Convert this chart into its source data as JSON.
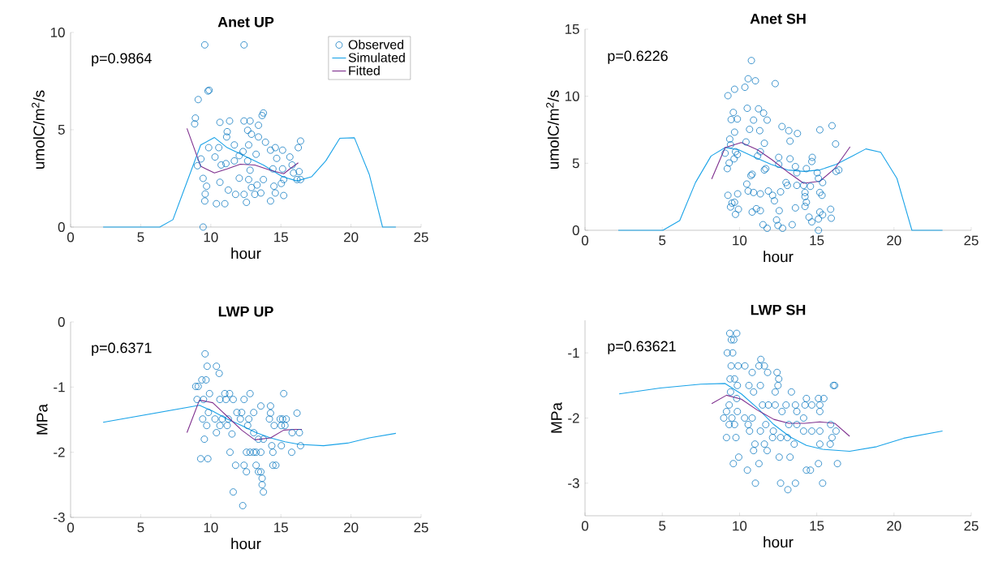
{
  "chart_data": [
    {
      "type": "scatter",
      "title": "Anet UP",
      "xlabel": "hour",
      "ylabel": "umolC/m$^{2}$/s",
      "annotations": [
        "p=0.9864"
      ],
      "xlim": [
        0,
        25
      ],
      "xticks": [
        0,
        5,
        10,
        15,
        20,
        25
      ],
      "ylim": [
        0,
        10
      ],
      "yticks": [
        0,
        5,
        10
      ],
      "legend": "top right",
      "series": [
        {
          "name": "Observed",
          "marker": "circle",
          "color": "#0072bd",
          "x": [
            9.57,
            12.37,
            9.88,
            9.8,
            9.1,
            8.9,
            8.85,
            9.3,
            9.05,
            9.85,
            9.45,
            9.7,
            9.6,
            9.57,
            10.4,
            11.0,
            9.45,
            10.65,
            11.34,
            11.17,
            11.13,
            10.57,
            10.3,
            10.74,
            10.65,
            11.25,
            11.77,
            11.68,
            12.3,
            12.37,
            12.8,
            12.63,
            12.9,
            13.4,
            13.66,
            13.75,
            13.4,
            13.23,
            12.7,
            12.63,
            12.8,
            12.7,
            12.9,
            13.3,
            13.57,
            13.14,
            12.54,
            12.37,
            13.75,
            13.9,
            14.26,
            14.6,
            14.7,
            14.43,
            14.5,
            14.6,
            14.26,
            15.12,
            15.12,
            15.2,
            15.03,
            15.2,
            15.64,
            15.8,
            15.9,
            16.15,
            16.4,
            16.3,
            16.24,
            16.4,
            12.03,
            11.68,
            12.03,
            11.08
          ],
          "values": [
            9.36,
            9.36,
            7.03,
            6.99,
            6.55,
            5.6,
            5.3,
            3.5,
            3.15,
            4.08,
            2.5,
            2.1,
            1.7,
            1.34,
            1.2,
            1.2,
            0,
            5.38,
            5.45,
            4.9,
            4.63,
            4.08,
            3.6,
            3.19,
            2.3,
            1.9,
            1.68,
            4.22,
            3.88,
            5.45,
            5.45,
            4.97,
            4.77,
            4.63,
            5.73,
            5.86,
            5.23,
            3.74,
            4.22,
            3.4,
            2.92,
            2.44,
            2.03,
            2.16,
            1.75,
            1.68,
            1.27,
            1.68,
            2.44,
            4.36,
            3.95,
            4.08,
            3.53,
            2.99,
            2.1,
            1.75,
            1.34,
            3.95,
            2.99,
            2.44,
            2.24,
            1.62,
            3.6,
            3.19,
            2.78,
            2.44,
            2.44,
            2.85,
            4.08,
            4.42,
            3.67,
            3.4,
            2.51,
            3.26
          ]
        },
        {
          "name": "Simulated",
          "type": "line",
          "color": "#1aa3e8",
          "x": [
            2.32,
            6.36,
            7.3,
            9.28,
            10.26,
            11.17,
            12.37,
            13.75,
            15.12,
            16.15,
            17.18,
            18.2,
            19.2,
            20.24,
            21.3,
            22.25,
            23.2
          ],
          "values": [
            0,
            0,
            0.38,
            4.22,
            4.6,
            4.08,
            3.67,
            3.19,
            2.58,
            2.37,
            2.58,
            3.4,
            4.56,
            4.59,
            2.71,
            0,
            0
          ]
        },
        {
          "name": "Fitted",
          "type": "line",
          "color": "#7e2f8e",
          "x": [
            8.3,
            9.28,
            10.26,
            11.17,
            12.1,
            13.14,
            14.26,
            15.2,
            15.64,
            16.24
          ],
          "values": [
            5.07,
            3.12,
            2.78,
            2.99,
            3.23,
            3.19,
            2.92,
            2.74,
            2.99,
            3.3
          ]
        }
      ]
    },
    {
      "type": "scatter",
      "title": "Anet SH",
      "xlabel": "hour",
      "ylabel": "umolC/m$^{2}$/s",
      "annotations": [
        "p=0.6226"
      ],
      "xlim": [
        0,
        25
      ],
      "xticks": [
        0,
        5,
        10,
        15,
        20,
        25
      ],
      "ylim": [
        0,
        15
      ],
      "yticks": [
        0,
        5,
        10,
        15
      ],
      "series": [
        {
          "marker": "circle",
          "color": "#0072bd",
          "x": [
            10.77,
            10.56,
            11.03,
            12.31,
            10.35,
            9.68,
            9.25,
            10.5,
            11.23,
            11.56,
            11.79,
            10.91,
            9.6,
            9.46,
            9.86,
            9.68,
            10.65,
            11.31,
            12.75,
            13.19,
            13.75,
            13.27,
            15.2,
            15.99,
            16.22,
            9.37,
            9.42,
            10.42,
            11.61,
            9.07,
            9.74,
            9.86,
            9.33,
            9.21,
            9.65,
            11.35,
            11.17,
            11.7,
            11.61,
            10.74,
            10.82,
            12.54,
            12.54,
            13.27,
            13.62,
            13.71,
            14.71,
            14.33,
            14.68,
            15.03,
            15.11,
            15.38,
            16.25,
            16.43,
            10.47,
            10.56,
            10.91,
            11.35,
            11.87,
            12.66,
            13.01,
            13.1,
            13.71,
            14.15,
            14.59,
            14.24,
            15.2,
            15.34,
            14.24,
            14.33,
            14.24,
            9.25,
            9.88,
            9.51,
            9.68,
            9.42,
            9.93,
            9.74,
            10.82,
            11.09,
            11.35,
            12.14,
            12.26,
            12.57,
            13.62,
            11.52,
            11.79,
            12.4,
            12.49,
            12.79,
            13.41,
            14.5,
            14.68,
            15.11,
            15.2,
            15.38,
            15.9,
            15.94,
            15.11
          ],
          "values": [
            12.66,
            11.3,
            11.15,
            10.94,
            10.67,
            10.52,
            10.04,
            9.1,
            9.06,
            8.74,
            8.22,
            8.22,
            8.79,
            8.26,
            8.3,
            7.32,
            7.53,
            7.43,
            7.74,
            7.43,
            7.22,
            6.65,
            7.49,
            7.8,
            6.44,
            6.8,
            6.38,
            6.59,
            6.49,
            5.75,
            5.86,
            5.65,
            5.02,
            4.6,
            5.33,
            5.86,
            5.54,
            4.6,
            4.5,
            4.08,
            4.18,
            5.44,
            4.92,
            5.33,
            4.75,
            4.29,
            5.44,
            4.6,
            5.13,
            4.29,
            3.87,
            3.56,
            4.39,
            4.5,
            3.45,
            2.93,
            2.82,
            2.72,
            2.93,
            2.87,
            3.56,
            3.35,
            3.35,
            3.35,
            3.28,
            2.82,
            2.82,
            2.61,
            2.51,
            2.09,
            1.78,
            2.61,
            2.72,
            2.03,
            2.09,
            1.74,
            1.57,
            1.19,
            1.36,
            1.61,
            1.46,
            2.61,
            2.2,
            1.46,
            1.67,
            0.42,
            0.15,
            0.77,
            0.36,
            0.15,
            0.42,
            0.98,
            0.63,
            0.84,
            1.36,
            1.15,
            1.57,
            0.9,
            0
          ]
        },
        {
          "type": "line",
          "color": "#1aa3e8",
          "x": [
            2.15,
            5.04,
            6.13,
            7.15,
            8.16,
            9.07,
            9.95,
            11.0,
            12.05,
            13.1,
            14.15,
            15.2,
            16.25,
            17.3,
            18.18,
            19.14,
            20.19,
            21.16,
            23.14
          ],
          "values": [
            0,
            0,
            0.73,
            3.56,
            5.54,
            6.17,
            6.0,
            5.44,
            4.92,
            4.5,
            4.39,
            4.5,
            4.92,
            5.54,
            6.07,
            5.82,
            3.87,
            0,
            0
          ]
        },
        {
          "type": "line",
          "color": "#7e2f8e",
          "x": [
            8.2,
            9.07,
            10.12,
            11.17,
            12.14,
            13.19,
            14.15,
            15.2,
            16.16,
            17.16
          ],
          "values": [
            3.83,
            6.17,
            6.55,
            6.0,
            5.23,
            4.29,
            3.51,
            3.66,
            4.6,
            6.23
          ]
        }
      ]
    },
    {
      "type": "scatter",
      "title": "LWP UP",
      "xlabel": "hour",
      "ylabel": "MPa",
      "annotations": [
        "p=0.6371"
      ],
      "xlim": [
        0,
        25
      ],
      "xticks": [
        0,
        5,
        10,
        15,
        20,
        25
      ],
      "ylim": [
        -3,
        0
      ],
      "yticks": [
        -3,
        -2,
        -1,
        0
      ],
      "series": [
        {
          "marker": "circle",
          "color": "#0072bd",
          "x": [
            9.59,
            9.74,
            10.4,
            10.6,
            8.93,
            9.1,
            9.36,
            9.66,
            9.91,
            9.02,
            9.48,
            10.65,
            11.0,
            11.34,
            11.08,
            11.6,
            12.8,
            15.2,
            12.37,
            13.57,
            14.26,
            14.26,
            16.15,
            9.42,
            9.83,
            10.3,
            10.82,
            11.86,
            12.2,
            12.71,
            13.06,
            11.25,
            12.11,
            9.71,
            10.65,
            11.17,
            12.63,
            14.18,
            14.52,
            14.95,
            15.12,
            15.38,
            15.03,
            15.29,
            15.8,
            16.32,
            9.54,
            10.4,
            11.51,
            13.06,
            13.4,
            13.75,
            14.35,
            15.03,
            16.4,
            9.28,
            9.79,
            11.37,
            12.54,
            12.8,
            13.06,
            13.23,
            13.57,
            14.43,
            15.77,
            11.77,
            12.37,
            12.54,
            13.23,
            13.4,
            13.57,
            14.43,
            14.64,
            13.66,
            13.66,
            13.75,
            11.6,
            12.28
          ],
          "values": [
            -0.49,
            -0.68,
            -0.68,
            -0.79,
            -0.99,
            -0.99,
            -0.89,
            -0.89,
            -1.1,
            -1.19,
            -1.19,
            -1.19,
            -1.1,
            -1.1,
            -1.19,
            -1.19,
            -1.1,
            -1.1,
            -1.19,
            -1.29,
            -1.29,
            -1.4,
            -1.4,
            -1.49,
            -1.39,
            -1.49,
            -1.49,
            -1.39,
            -1.39,
            -1.49,
            -1.39,
            -1.49,
            -1.49,
            -1.59,
            -1.59,
            -1.59,
            -1.59,
            -1.49,
            -1.59,
            -1.49,
            -1.49,
            -1.49,
            -1.59,
            -1.59,
            -1.7,
            -1.7,
            -1.8,
            -1.7,
            -1.72,
            -1.7,
            -1.8,
            -1.8,
            -1.9,
            -1.9,
            -1.9,
            -2.1,
            -2.1,
            -2.0,
            -2.0,
            -2.0,
            -2.0,
            -2.0,
            -2.0,
            -2.0,
            -2.0,
            -2.2,
            -2.2,
            -2.3,
            -2.2,
            -2.3,
            -2.3,
            -2.2,
            -2.2,
            -2.4,
            -2.5,
            -2.61,
            -2.61,
            -2.82
          ]
        },
        {
          "type": "line",
          "color": "#1aa3e8",
          "x": [
            2.32,
            9.19,
            10.14,
            11.17,
            12.2,
            13.23,
            14.26,
            15.29,
            16.32,
            18.04,
            19.76,
            21.3,
            23.2
          ],
          "values": [
            -1.54,
            -1.28,
            -1.37,
            -1.49,
            -1.59,
            -1.7,
            -1.78,
            -1.84,
            -1.88,
            -1.9,
            -1.86,
            -1.78,
            -1.71
          ]
        },
        {
          "type": "line",
          "color": "#7e2f8e",
          "x": [
            8.3,
            9.19,
            10.14,
            11.17,
            12.2,
            13.14,
            14.26,
            15.2,
            16.07,
            16.5
          ],
          "values": [
            -1.7,
            -1.2,
            -1.24,
            -1.45,
            -1.66,
            -1.81,
            -1.78,
            -1.66,
            -1.65,
            -1.65
          ]
        }
      ]
    },
    {
      "type": "scatter",
      "title": "LWP SH",
      "xlabel": "hour",
      "ylabel": "MPa",
      "annotations": [
        "p=0.63621"
      ],
      "xlim": [
        0,
        25
      ],
      "xticks": [
        0,
        5,
        10,
        15,
        20,
        25
      ],
      "ylim": [
        -3.5,
        -0.5
      ],
      "yticks": [
        -3,
        -2,
        -1
      ],
      "series": [
        {
          "marker": "circle",
          "color": "#0072bd",
          "x": [
            9.37,
            9.82,
            9.47,
            9.63,
            9.21,
            9.56,
            9.46,
            9.91,
            10.35,
            11.38,
            11.26,
            11.61,
            10.82,
            11.82,
            12.43,
            12.54,
            9.39,
            9.68,
            10.61,
            11.35,
            12.49,
            9.86,
            16.08,
            16.16,
            10.91,
            12.31,
            13.36,
            9.42,
            9.82,
            14.33,
            15.11,
            15.46,
            9.33,
            11.49,
            11.87,
            12.31,
            13.01,
            13.62,
            14.24,
            14.68,
            15.2,
            9.16,
            9.86,
            12.75,
            13.71,
            15.2,
            8.98,
            9.51,
            10.33,
            10.82,
            14.15,
            9.33,
            9.68,
            10.56,
            11.7,
            13.19,
            13.71,
            15.9,
            10.65,
            11.35,
            12.19,
            14.15,
            14.68,
            15.2,
            16.25,
            9.16,
            9.77,
            12.14,
            12.66,
            13.1,
            15.99,
            11.0,
            11.61,
            13.54,
            15.2,
            15.87,
            10.91,
            11.79,
            9.95,
            12.57,
            13.27,
            9.6,
            11.26,
            15.11,
            16.34,
            10.51,
            14.33,
            14.59,
            11.03,
            12.66,
            13.62,
            15.38,
            13.13
          ],
          "values": [
            -0.7,
            -0.7,
            -0.8,
            -0.8,
            -1.0,
            -1.0,
            -1.2,
            -1.2,
            -1.2,
            -1.1,
            -1.2,
            -1.2,
            -1.3,
            -1.3,
            -1.3,
            -1.4,
            -1.4,
            -1.4,
            -1.5,
            -1.5,
            -1.5,
            -1.5,
            -1.5,
            -1.5,
            -1.6,
            -1.6,
            -1.6,
            -1.6,
            -1.7,
            -1.7,
            -1.7,
            -1.7,
            -1.8,
            -1.8,
            -1.8,
            -1.8,
            -1.8,
            -1.8,
            -1.8,
            -1.8,
            -1.8,
            -1.9,
            -1.9,
            -1.9,
            -1.9,
            -1.9,
            -2.0,
            -2.0,
            -2.0,
            -2.0,
            -2.0,
            -2.1,
            -2.1,
            -2.1,
            -2.1,
            -2.1,
            -2.1,
            -2.1,
            -2.2,
            -2.2,
            -2.2,
            -2.2,
            -2.2,
            -2.2,
            -2.2,
            -2.3,
            -2.3,
            -2.3,
            -2.3,
            -2.3,
            -2.3,
            -2.4,
            -2.4,
            -2.4,
            -2.4,
            -2.4,
            -2.5,
            -2.5,
            -2.6,
            -2.6,
            -2.6,
            -2.7,
            -2.7,
            -2.7,
            -2.7,
            -2.8,
            -2.8,
            -2.8,
            -3.0,
            -3.0,
            -3.0,
            -3.0,
            -3.1
          ]
        },
        {
          "type": "line",
          "color": "#1aa3e8",
          "x": [
            2.21,
            4.87,
            7.5,
            9.07,
            10.12,
            11.17,
            12.22,
            13.27,
            14.33,
            15.38,
            17.13,
            18.88,
            20.63,
            23.14
          ],
          "values": [
            -1.63,
            -1.54,
            -1.48,
            -1.47,
            -1.63,
            -1.85,
            -2.1,
            -2.29,
            -2.42,
            -2.48,
            -2.51,
            -2.44,
            -2.31,
            -2.2
          ]
        },
        {
          "type": "line",
          "color": "#7e2f8e",
          "x": [
            8.2,
            9.16,
            10.12,
            11.17,
            12.22,
            13.19,
            14.24,
            15.2,
            16.16,
            17.13
          ],
          "values": [
            -1.78,
            -1.65,
            -1.71,
            -1.88,
            -2.02,
            -2.08,
            -2.08,
            -2.06,
            -2.08,
            -2.28
          ]
        }
      ]
    }
  ]
}
